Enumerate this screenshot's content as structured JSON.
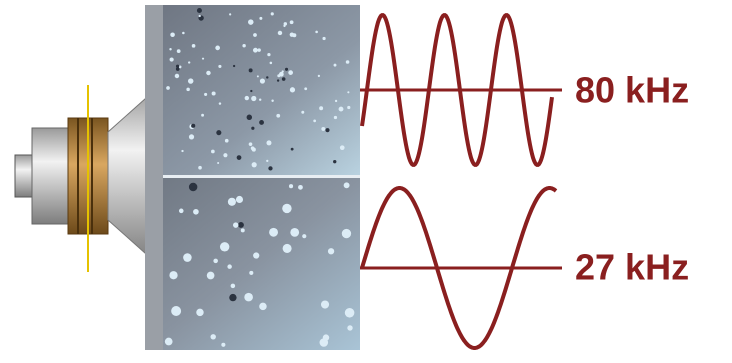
{
  "labels": [
    {
      "text": "80 kHz"
    },
    {
      "text": "27 kHz"
    }
  ]
}
